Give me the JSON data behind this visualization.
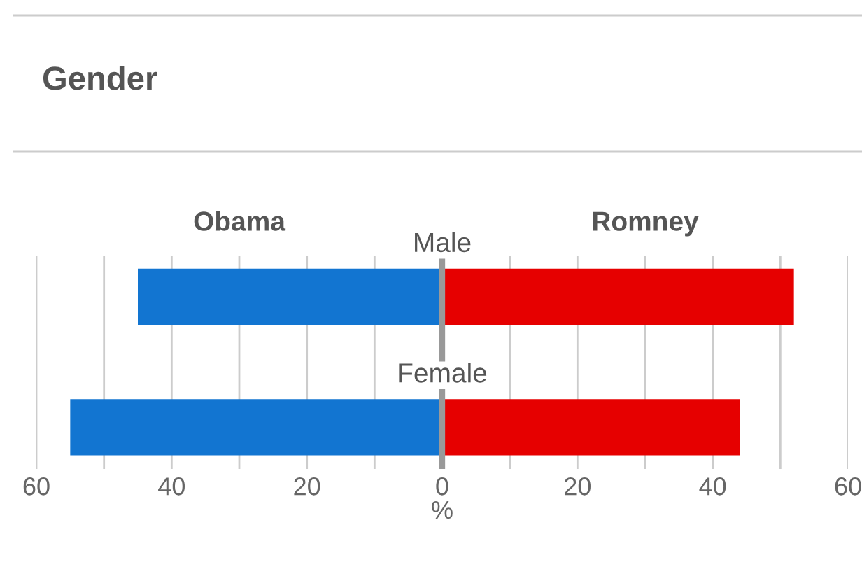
{
  "chart_data": {
    "type": "bar",
    "orientation": "horizontal",
    "title": "Gender",
    "xlabel": "%",
    "categories": [
      "Male",
      "Female"
    ],
    "series": [
      {
        "name": "Obama",
        "color": "#1275d1",
        "values": [
          -45,
          -55
        ]
      },
      {
        "name": "Romney",
        "color": "#e60000",
        "values": [
          52,
          44
        ]
      }
    ],
    "xlim": [
      -60,
      60
    ],
    "xticks": [
      {
        "value": -60,
        "label": "60"
      },
      {
        "value": -50,
        "label": null
      },
      {
        "value": -40,
        "label": "40"
      },
      {
        "value": -30,
        "label": null
      },
      {
        "value": -20,
        "label": "20"
      },
      {
        "value": -10,
        "label": null
      },
      0,
      {
        "value": 10,
        "label": null
      },
      20,
      {
        "value": 30,
        "label": null
      },
      40,
      {
        "value": 50,
        "label": null
      },
      60
    ],
    "stacked": true,
    "grid": "x"
  }
}
